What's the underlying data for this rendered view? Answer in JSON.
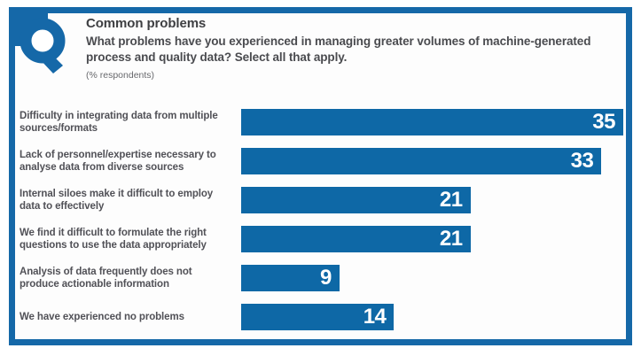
{
  "header": {
    "title": "Common problems",
    "question": "What problems have you experienced in managing greater volumes of machine-generated process and quality data? Select all that apply.",
    "unit_note": "(% respondents)",
    "icon": "q-badge-icon"
  },
  "colors": {
    "bar_blue": "#0E68A6",
    "frame_blue": "#1568A8",
    "title_text": "#3E3F42",
    "label_text": "#515157",
    "value_text": "#FFFFFF"
  },
  "chart_data": {
    "type": "bar",
    "orientation": "horizontal",
    "title": "Common problems",
    "subtitle": "What problems have you experienced in managing greater volumes of machine-generated process and quality data? Select all that apply.",
    "unit_label": "(% respondents)",
    "categories": [
      "Difficulty in integrating data from multiple sources/formats",
      "Lack of personnel/expertise necessary to analyse data from diverse sources",
      "Internal siloes make it difficult to employ data to effectively",
      "We find it difficult to formulate the right questions to use the data appropriately",
      "Analysis of data frequently does not produce actionable information",
      "We have experienced no problems"
    ],
    "values": [
      35,
      33,
      21,
      21,
      9,
      14
    ],
    "xlim": [
      0,
      35
    ],
    "value_label_position": "inside-end",
    "grid": false,
    "legend": false
  }
}
